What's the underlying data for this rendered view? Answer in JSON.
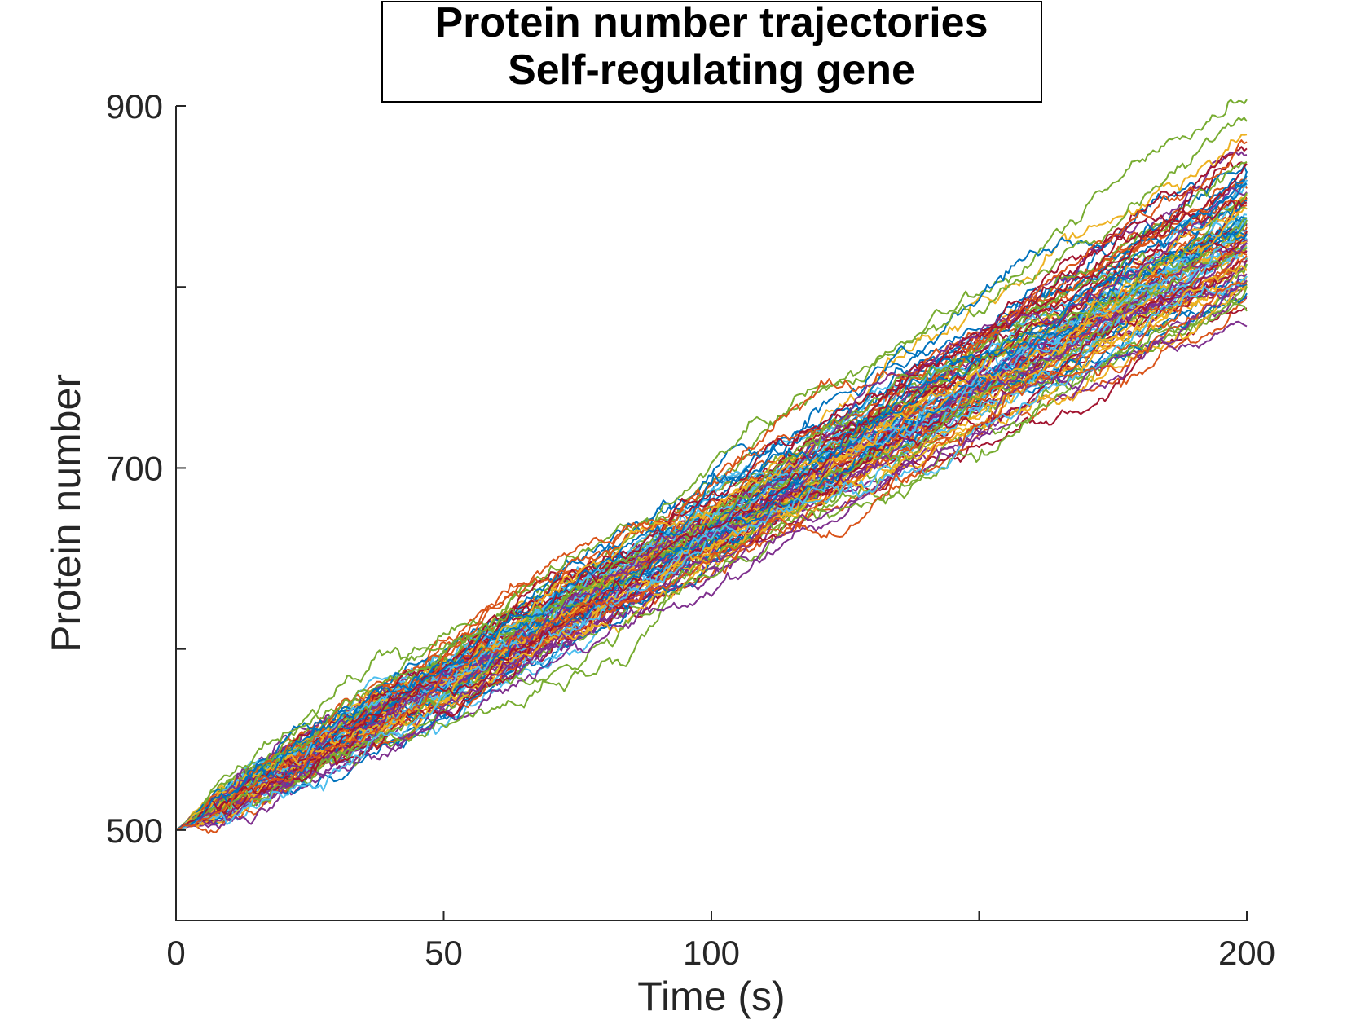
{
  "chart_data": {
    "type": "line",
    "title": [
      "Protein number trajectories",
      "Self-regulating gene"
    ],
    "xlabel": "Time (s)",
    "ylabel": "Protein number",
    "xlim": [
      0,
      200
    ],
    "ylim": [
      450,
      900
    ],
    "xticks": [
      0,
      50,
      100,
      150,
      200
    ],
    "xtick_labels": [
      "0",
      "50",
      "100",
      "",
      "200"
    ],
    "yticks": [
      500,
      600,
      700,
      800,
      900
    ],
    "ytick_labels": [
      "500",
      "",
      "700",
      "",
      "900"
    ],
    "grid": false,
    "legend": "none",
    "series_count": 100,
    "start_value": 500,
    "end_value_range": [
      775,
      895
    ],
    "mean_end_value": 835,
    "series_colors": [
      "#0072BD",
      "#D95319",
      "#EDB120",
      "#7E2F8E",
      "#77AC30",
      "#4DBEEE",
      "#A2142F"
    ]
  }
}
